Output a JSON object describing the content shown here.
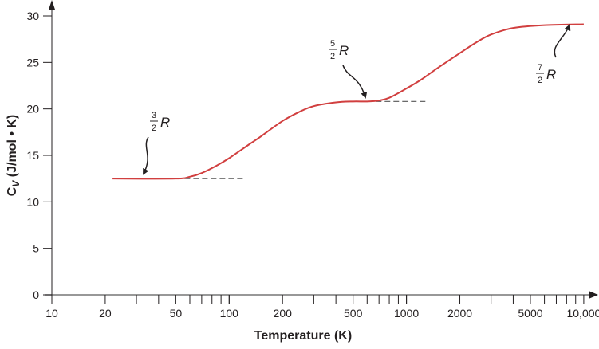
{
  "chart_data": {
    "type": "line",
    "title": "",
    "xlabel": "Temperature (K)",
    "ylabel": "C_V (J/mol • K)",
    "ylabel_main": "C",
    "ylabel_sub": "V",
    "ylabel_rest": " (J/mol • K)",
    "xscale": "log",
    "xlim": [
      10,
      10000
    ],
    "ylim": [
      0,
      30
    ],
    "xticks": [
      10,
      20,
      50,
      100,
      200,
      500,
      1000,
      2000,
      5000,
      10000
    ],
    "xtick_labels": [
      "10",
      "20",
      "50",
      "100",
      "200",
      "500",
      "1000",
      "2000",
      "5000",
      "10,000"
    ],
    "yticks": [
      0,
      5,
      10,
      15,
      20,
      25,
      30
    ],
    "ytick_labels": [
      "0",
      "5",
      "10",
      "15",
      "20",
      "25",
      "30"
    ],
    "grid": false,
    "line_color": "#d13f3f",
    "series": [
      {
        "x": [
          22,
          50,
          60,
          70,
          85,
          100,
          130,
          150,
          200,
          250,
          300,
          400,
          500,
          600,
          700,
          800,
          1000,
          1200,
          1500,
          2000,
          2500,
          3000,
          4000,
          6000,
          10000
        ],
        "y": [
          12.5,
          12.5,
          12.7,
          13.1,
          13.9,
          14.7,
          16.2,
          17.0,
          18.7,
          19.7,
          20.3,
          20.7,
          20.8,
          20.8,
          20.9,
          21.2,
          22.2,
          23.1,
          24.4,
          26.0,
          27.2,
          28.0,
          28.7,
          29.0,
          29.1
        ]
      }
    ],
    "reference_lines": [
      {
        "y": 12.5,
        "x_from": 50,
        "x_to": 120,
        "style": "dashed"
      },
      {
        "y": 20.8,
        "x_from": 600,
        "x_to": 1300,
        "style": "dashed"
      }
    ],
    "annotations": [
      {
        "num": "3",
        "den": "2",
        "text": "R",
        "points_to": [
          22,
          12.5
        ]
      },
      {
        "num": "5",
        "den": "2",
        "text": "R",
        "points_to": [
          600,
          20.8
        ]
      },
      {
        "num": "7",
        "den": "2",
        "text": "R",
        "points_to": [
          9000,
          29.1
        ]
      }
    ]
  }
}
